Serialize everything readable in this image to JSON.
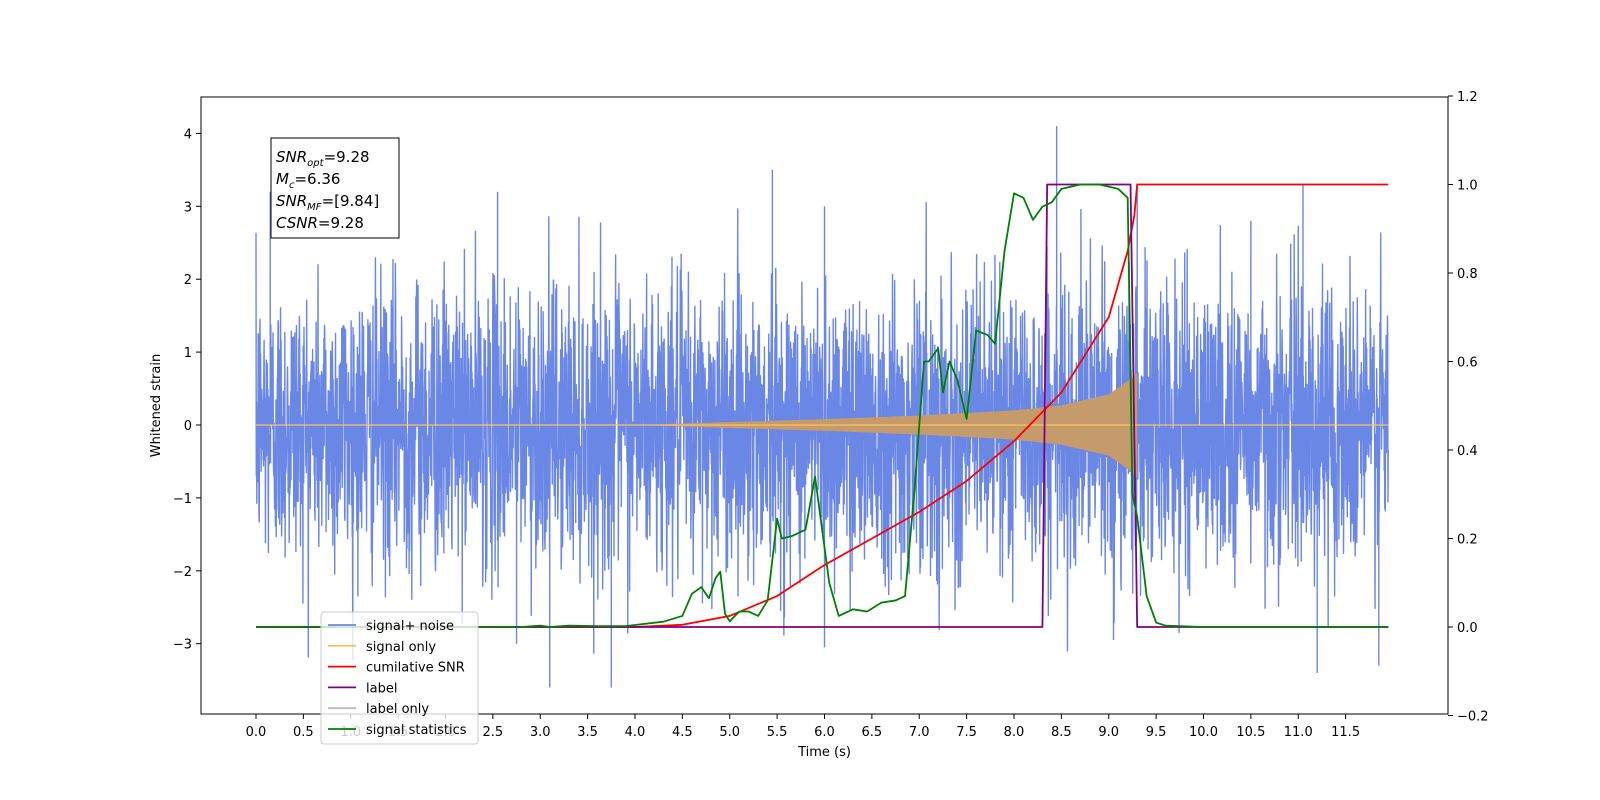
{
  "chart_data": {
    "type": "line",
    "title": "",
    "xlabel": "Time (s)",
    "ylabel": "Whitened strain",
    "xlim": [
      -0.6,
      12.6
    ],
    "ylim": [
      -4.0,
      4.5
    ],
    "y2lim": [
      -0.2,
      1.2
    ],
    "grid": false,
    "x_ticks": [
      "0.0",
      "0.5",
      "1.0",
      "1.5",
      "2.0",
      "2.5",
      "3.0",
      "3.5",
      "4.0",
      "4.5",
      "5.0",
      "5.5",
      "6.0",
      "6.5",
      "7.0",
      "7.5",
      "8.0",
      "8.5",
      "9.0",
      "9.5",
      "10.0",
      "10.5",
      "11.0",
      "11.5"
    ],
    "y_ticks": [
      "−3",
      "−2",
      "−1",
      "0",
      "1",
      "2",
      "3",
      "4"
    ],
    "y2_ticks": [
      "−0.2",
      "0.0",
      "0.2",
      "0.4",
      "0.6",
      "0.8",
      "1.0",
      "1.2"
    ],
    "annotation": {
      "lines": [
        {
          "base": "SNR",
          "sub": "opt",
          "value": "=9.28"
        },
        {
          "base": "M",
          "sub": "c",
          "value": "=6.36"
        },
        {
          "base": "SNR",
          "sub": "MF",
          "value": "=[9.84]"
        },
        {
          "base": "CSNR",
          "sub": "",
          "value": "=9.28"
        }
      ]
    },
    "legend": {
      "position": "lower-left",
      "entries": [
        {
          "label": "signal+ noise",
          "color": "#6a87e6"
        },
        {
          "label": "signal only",
          "color": "#ffbf60"
        },
        {
          "label": "cumilative SNR",
          "color": "#ff0000"
        },
        {
          "label": "label",
          "color": "#800080"
        },
        {
          "label": "label only",
          "color": "#bbbbbb"
        },
        {
          "label": "signal statistics",
          "color": "#008000"
        }
      ]
    },
    "series": [
      {
        "name": "signal+ noise",
        "axis": "left",
        "color": "#6a87e6",
        "description_range": [
          -3.6,
          4.1
        ],
        "noise_sigma": 0.95,
        "spikes": [
          {
            "x": 5.45,
            "y": 3.5
          },
          {
            "x": 8.45,
            "y": 4.1
          },
          {
            "x": 2.55,
            "y": 3.2
          },
          {
            "x": 0.15,
            "y": 3.2
          },
          {
            "x": 6.0,
            "y": 3.0
          },
          {
            "x": 3.1,
            "y": -3.6
          },
          {
            "x": 3.75,
            "y": -3.6
          },
          {
            "x": 11.2,
            "y": -3.4
          },
          {
            "x": 11.85,
            "y": -3.3
          },
          {
            "x": 6.0,
            "y": -3.05
          },
          {
            "x": 9.05,
            "y": -2.95
          },
          {
            "x": 11.05,
            "y": 3.3
          },
          {
            "x": 9.3,
            "y": 3.3
          },
          {
            "x": 10.5,
            "y": 2.8
          },
          {
            "x": 2.75,
            "y": -3.0
          }
        ]
      },
      {
        "name": "signal only",
        "axis": "left",
        "color": "#c59b6b",
        "chirp_start": 4.0,
        "chirp_end": 9.3,
        "amplitude_end": 0.72,
        "amplitude_mid": [
          [
            5.0,
            0.04
          ],
          [
            6.0,
            0.08
          ],
          [
            7.0,
            0.13
          ],
          [
            8.0,
            0.2
          ],
          [
            8.5,
            0.27
          ],
          [
            9.0,
            0.42
          ],
          [
            9.25,
            0.65
          ]
        ]
      },
      {
        "name": "cumilative SNR",
        "axis": "right",
        "color": "#ff0000",
        "x": [
          0.0,
          4.0,
          4.5,
          5.0,
          5.5,
          6.0,
          6.5,
          7.0,
          7.5,
          8.0,
          8.5,
          9.0,
          9.2,
          9.27,
          9.3,
          11.95
        ],
        "y": [
          0.0,
          0.0,
          0.005,
          0.025,
          0.07,
          0.14,
          0.2,
          0.26,
          0.33,
          0.42,
          0.53,
          0.7,
          0.85,
          0.93,
          1.0,
          1.0
        ]
      },
      {
        "name": "label",
        "axis": "right",
        "color": "#800080",
        "x": [
          0.0,
          8.3,
          8.35,
          9.23,
          9.3,
          11.95
        ],
        "y": [
          0.0,
          0.0,
          1.0,
          1.0,
          0.0,
          0.0
        ]
      },
      {
        "name": "signal statistics",
        "axis": "right",
        "color": "#008000",
        "x": [
          0.0,
          2.8,
          3.0,
          3.1,
          3.3,
          3.6,
          3.9,
          4.1,
          4.3,
          4.5,
          4.6,
          4.7,
          4.78,
          4.85,
          4.9,
          4.95,
          5.0,
          5.1,
          5.2,
          5.3,
          5.4,
          5.5,
          5.55,
          5.65,
          5.8,
          5.9,
          5.95,
          6.05,
          6.15,
          6.3,
          6.45,
          6.6,
          6.75,
          6.85,
          6.95,
          7.05,
          7.1,
          7.2,
          7.25,
          7.32,
          7.4,
          7.5,
          7.6,
          7.72,
          7.8,
          7.9,
          8.0,
          8.1,
          8.2,
          8.3,
          8.4,
          8.5,
          8.7,
          8.9,
          9.1,
          9.2,
          9.25,
          9.3,
          9.4,
          9.5,
          9.6,
          10.0,
          11.95
        ],
        "y": [
          0.0,
          0.0,
          0.003,
          0.0,
          0.003,
          0.002,
          0.002,
          0.007,
          0.012,
          0.025,
          0.075,
          0.09,
          0.065,
          0.11,
          0.125,
          0.03,
          0.013,
          0.035,
          0.035,
          0.025,
          0.06,
          0.245,
          0.2,
          0.205,
          0.22,
          0.34,
          0.26,
          0.1,
          0.025,
          0.04,
          0.035,
          0.055,
          0.06,
          0.07,
          0.31,
          0.6,
          0.6,
          0.63,
          0.53,
          0.6,
          0.56,
          0.47,
          0.67,
          0.66,
          0.64,
          0.85,
          0.98,
          0.97,
          0.92,
          0.95,
          0.96,
          0.99,
          1.0,
          1.0,
          0.99,
          0.97,
          0.3,
          0.25,
          0.07,
          0.01,
          0.003,
          0.0,
          0.0
        ]
      }
    ]
  }
}
